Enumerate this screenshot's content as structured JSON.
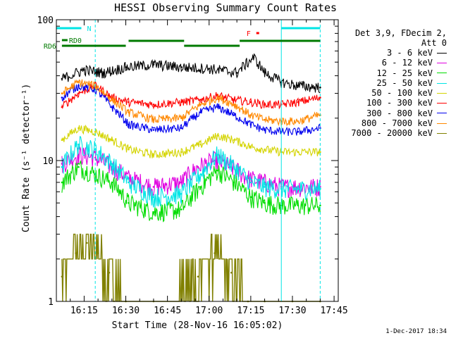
{
  "chart_data": {
    "type": "line",
    "title": "HESSI Observing Summary Count Rates",
    "xlabel": "Start Time (28-Nov-16 16:05:02)",
    "ylabel": "Count Rate (s⁻¹ detector⁻¹)",
    "y_scale": "log",
    "ylim": [
      1,
      100
    ],
    "xlim": [
      "16:05",
      "17:42"
    ],
    "x_ticks": [
      "16:15",
      "16:30",
      "16:45",
      "17:00",
      "17:15",
      "17:30",
      "17:45"
    ],
    "y_ticks": [
      "1",
      "10",
      "100"
    ],
    "grid": false,
    "legend_header": [
      "Det 3,9, FDecim 2,",
      "Att 0"
    ],
    "legend_position": "right",
    "series": [
      {
        "name": "3 - 6 keV",
        "color": "#000000",
        "x": [
          "16:07",
          "16:15",
          "16:22",
          "16:30",
          "16:40",
          "16:50",
          "17:00",
          "17:10",
          "17:16",
          "17:20",
          "17:26",
          "17:32",
          "17:40"
        ],
        "y": [
          38,
          44,
          42,
          46,
          48,
          46,
          45,
          42,
          54,
          42,
          36,
          34,
          33
        ]
      },
      {
        "name": "6 - 12 keV",
        "color": "#e000e0",
        "x": [
          "16:07",
          "16:13",
          "16:19",
          "16:25",
          "16:31",
          "16:40",
          "16:50",
          "16:56",
          "17:02",
          "17:08",
          "17:14",
          "17:20",
          "17:26",
          "17:32",
          "17:40"
        ],
        "y": [
          9.5,
          11,
          10.5,
          9,
          7.5,
          6.5,
          7,
          9,
          10,
          9,
          7.5,
          7,
          6.5,
          6.5,
          6.5
        ]
      },
      {
        "name": "12 - 25 keV",
        "color": "#00dd00",
        "x": [
          "16:07",
          "16:13",
          "16:19",
          "16:25",
          "16:31",
          "16:40",
          "16:50",
          "16:57",
          "17:03",
          "17:09",
          "17:15",
          "17:20",
          "17:26",
          "17:32",
          "17:40"
        ],
        "y": [
          7,
          9,
          8,
          7,
          5,
          4.3,
          4.5,
          6.5,
          8.5,
          7,
          5.5,
          5,
          4.8,
          4.8,
          4.8
        ]
      },
      {
        "name": "25 - 50 keV",
        "color": "#00e5e5",
        "x": [
          "16:07",
          "16:13",
          "16:19",
          "16:25",
          "16:31",
          "16:40",
          "16:50",
          "16:57",
          "17:03",
          "17:09",
          "17:15",
          "17:20",
          "17:26",
          "17:32",
          "17:40"
        ],
        "y": [
          9,
          13,
          12,
          9.5,
          7,
          5.5,
          5.8,
          8,
          11,
          9,
          7,
          6.5,
          6.3,
          6.3,
          6.3
        ]
      },
      {
        "name": "50 - 100 keV",
        "color": "#d4d400",
        "x": [
          "16:07",
          "16:13",
          "16:19",
          "16:25",
          "16:31",
          "16:40",
          "16:50",
          "16:57",
          "17:03",
          "17:09",
          "17:15",
          "17:20",
          "17:26",
          "17:32",
          "17:40"
        ],
        "y": [
          14,
          17,
          16,
          14,
          12,
          11,
          11.5,
          13,
          15,
          14,
          12.5,
          12,
          11.5,
          11.5,
          11.5
        ]
      },
      {
        "name": "100 - 300 keV",
        "color": "#ff0000",
        "x": [
          "16:07",
          "16:13",
          "16:19",
          "16:25",
          "16:31",
          "16:40",
          "16:50",
          "16:57",
          "17:03",
          "17:09",
          "17:15",
          "17:20",
          "17:26",
          "17:32",
          "17:40"
        ],
        "y": [
          24,
          30,
          34,
          28,
          26,
          25,
          26,
          27,
          29,
          27,
          26,
          25,
          25,
          26,
          28
        ]
      },
      {
        "name": "300 - 800 keV",
        "color": "#0000ee",
        "x": [
          "16:07",
          "16:13",
          "16:19",
          "16:25",
          "16:31",
          "16:40",
          "16:50",
          "16:57",
          "17:03",
          "17:09",
          "17:15",
          "17:20",
          "17:26",
          "17:32",
          "17:40"
        ],
        "y": [
          28,
          34,
          32,
          24,
          18,
          16.5,
          17,
          22,
          24,
          21,
          18,
          16.5,
          16,
          16,
          17
        ]
      },
      {
        "name": "800 - 7000 keV",
        "color": "#ff8800",
        "x": [
          "16:07",
          "16:13",
          "16:19",
          "16:25",
          "16:31",
          "16:40",
          "16:50",
          "16:57",
          "17:03",
          "17:09",
          "17:15",
          "17:20",
          "17:26",
          "17:32",
          "17:40"
        ],
        "y": [
          30,
          36,
          34,
          27,
          22,
          19.5,
          20,
          25,
          28,
          25,
          21,
          19.5,
          19,
          19,
          21
        ]
      },
      {
        "name": "7000 - 20000 keV",
        "color": "#808000",
        "x": [
          "16:07",
          "16:12",
          "16:16",
          "16:20",
          "16:24",
          "16:30",
          "16:40",
          "16:56",
          "17:02",
          "17:08",
          "17:14",
          "17:20",
          "17:30",
          "17:40"
        ],
        "y": [
          1.5,
          2.2,
          2.6,
          2.2,
          1.6,
          1,
          1,
          1.5,
          2.2,
          1.6,
          1,
          1,
          1,
          1
        ]
      }
    ],
    "bars": [
      {
        "label": "N",
        "color": "#00e5e5",
        "start": "16:05",
        "end": "16:14"
      },
      {
        "label": "",
        "color": "#00e5e5",
        "start": "17:26",
        "end": "17:40"
      },
      {
        "label": "RD0",
        "color": "#007a00",
        "start": "16:07",
        "end": "16:07"
      },
      {
        "label": "RD6",
        "color": "#007a00",
        "start": "16:07",
        "end": "16:30"
      },
      {
        "label": "",
        "color": "#007a00",
        "start": "16:31",
        "end": "16:51"
      },
      {
        "label": "",
        "color": "#007a00",
        "start": "16:51",
        "end": "17:11"
      },
      {
        "label": "",
        "color": "#007a00",
        "start": "17:11",
        "end": "17:40"
      },
      {
        "label": "F",
        "color": "#ff0000",
        "start": "17:17",
        "end": "17:18"
      }
    ],
    "vertical_lines": [
      {
        "x": "16:05",
        "style": "solid",
        "color": "#00e5e5"
      },
      {
        "x": "16:19",
        "style": "dashed",
        "color": "#00e5e5"
      },
      {
        "x": "17:26",
        "style": "solid",
        "color": "#00e5e5"
      },
      {
        "x": "17:40",
        "style": "dashed",
        "color": "#00e5e5"
      }
    ]
  },
  "datestamp": "1-Dec-2017 18:34"
}
